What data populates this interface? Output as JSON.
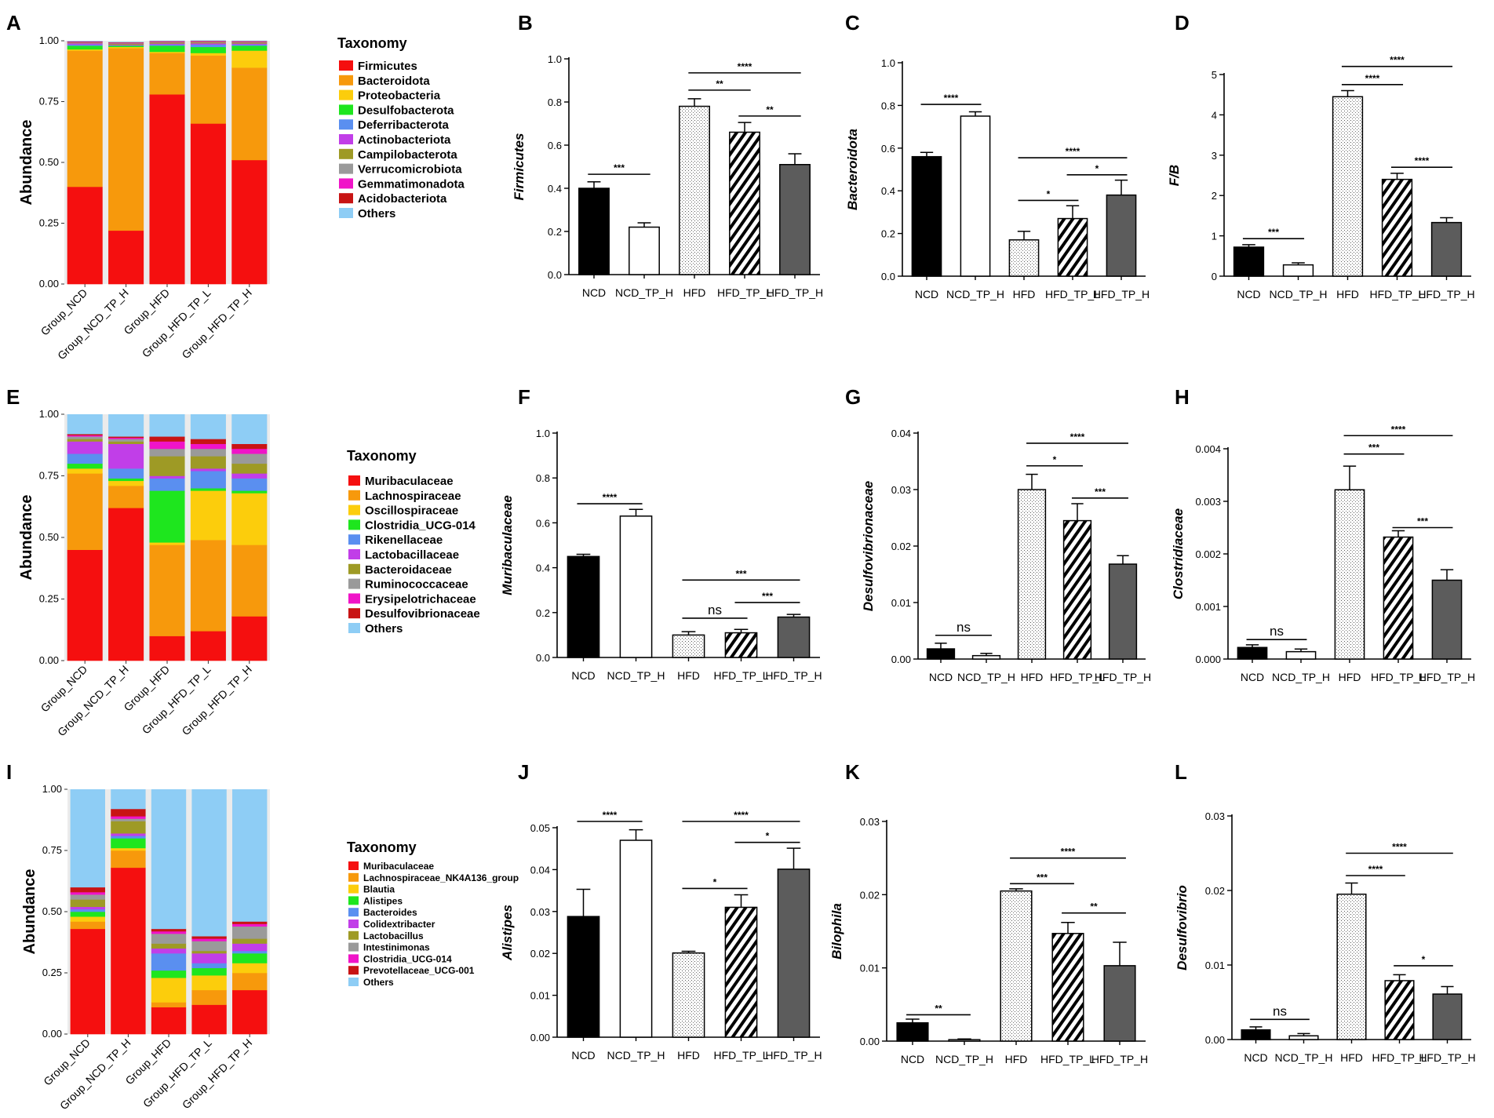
{
  "figure": {
    "bar_categories": [
      "NCD",
      "NCD_TP_H",
      "HFD",
      "HFD_TP_L",
      "HFD_TP_H"
    ],
    "stack_categories": [
      "Group_NCD",
      "Group_NCD_TP_H",
      "Group_HFD",
      "Group_HFD_TP_L",
      "Group_HFD_TP_H"
    ]
  },
  "chart_data": [
    {
      "id": "A",
      "panel_label": "A",
      "type": "stacked-bar",
      "ylabel": "Abundance",
      "ylim": [
        0,
        1
      ],
      "yticks": [
        "0.00",
        "0.25",
        "0.50",
        "0.75",
        "1.00"
      ],
      "categories": [
        "Group_NCD",
        "Group_NCD_TP_H",
        "Group_HFD",
        "Group_HFD_TP_L",
        "Group_HFD_TP_H"
      ],
      "legend_title": "Taxonomy",
      "series": [
        {
          "name": "Firmicutes",
          "color": "#f50f0f",
          "values": [
            0.4,
            0.22,
            0.78,
            0.66,
            0.51
          ]
        },
        {
          "name": "Bacteroidota",
          "color": "#f7990c",
          "values": [
            0.56,
            0.75,
            0.17,
            0.28,
            0.38
          ]
        },
        {
          "name": "Proteobacteria",
          "color": "#fccd0c",
          "values": [
            0.005,
            0.005,
            0.005,
            0.01,
            0.07
          ]
        },
        {
          "name": "Desulfobacterota",
          "color": "#1ee61e",
          "values": [
            0.015,
            0.005,
            0.025,
            0.025,
            0.02
          ]
        },
        {
          "name": "Deferribacterota",
          "color": "#5a8ff0",
          "values": [
            0.005,
            0.002,
            0.005,
            0.01,
            0.005
          ]
        },
        {
          "name": "Actinobacteriota",
          "color": "#c13ee8",
          "values": [
            0.005,
            0.002,
            0.004,
            0.005,
            0.004
          ]
        },
        {
          "name": "Campilobacterota",
          "color": "#9e9a25",
          "values": [
            0.002,
            0.004,
            0.004,
            0.004,
            0.004
          ]
        },
        {
          "name": "Verrucomicrobiota",
          "color": "#9a9a9a",
          "values": [
            0.002,
            0.002,
            0.002,
            0.002,
            0.002
          ]
        },
        {
          "name": "Gemmatimonadota",
          "color": "#f014c8",
          "values": [
            0.002,
            0.002,
            0.002,
            0.002,
            0.002
          ]
        },
        {
          "name": "Acidobacteriota",
          "color": "#c81414",
          "values": [
            0.002,
            0.002,
            0.002,
            0.002,
            0.002
          ]
        },
        {
          "name": "Others",
          "color": "#8ecdf5",
          "values": [
            0.002,
            0.002,
            0.002,
            0.002,
            0.002
          ]
        }
      ]
    },
    {
      "id": "E",
      "panel_label": "E",
      "type": "stacked-bar",
      "ylabel": "Abundance",
      "ylim": [
        0,
        1
      ],
      "yticks": [
        "0.00",
        "0.25",
        "0.50",
        "0.75",
        "1.00"
      ],
      "categories": [
        "Group_NCD",
        "Group_NCD_TP_H",
        "Group_HFD",
        "Group_HFD_TP_L",
        "Group_HFD_TP_H"
      ],
      "legend_title": "Taxonomy",
      "series": [
        {
          "name": "Muribaculaceae",
          "color": "#f50f0f",
          "values": [
            0.45,
            0.62,
            0.1,
            0.12,
            0.18
          ]
        },
        {
          "name": "Lachnospiraceae",
          "color": "#f7990c",
          "values": [
            0.31,
            0.09,
            0.37,
            0.37,
            0.29
          ]
        },
        {
          "name": "Oscillospiraceae",
          "color": "#fccd0c",
          "values": [
            0.02,
            0.02,
            0.01,
            0.2,
            0.21
          ]
        },
        {
          "name": "Clostridia_UCG-014",
          "color": "#1ee61e",
          "values": [
            0.02,
            0.01,
            0.21,
            0.01,
            0.01
          ]
        },
        {
          "name": "Rikenellaceae",
          "color": "#5a8ff0",
          "values": [
            0.04,
            0.04,
            0.05,
            0.07,
            0.05
          ]
        },
        {
          "name": "Lactobacillaceae",
          "color": "#c13ee8",
          "values": [
            0.05,
            0.1,
            0.01,
            0.01,
            0.02
          ]
        },
        {
          "name": "Bacteroidaceae",
          "color": "#9e9a25",
          "values": [
            0.01,
            0.01,
            0.08,
            0.05,
            0.04
          ]
        },
        {
          "name": "Ruminococcaceae",
          "color": "#9a9a9a",
          "values": [
            0.01,
            0.01,
            0.03,
            0.03,
            0.04
          ]
        },
        {
          "name": "Erysipelotrichaceae",
          "color": "#f014c8",
          "values": [
            0.005,
            0.005,
            0.03,
            0.02,
            0.02
          ]
        },
        {
          "name": "Desulfovibrionaceae",
          "color": "#c81414",
          "values": [
            0.005,
            0.005,
            0.02,
            0.02,
            0.02
          ]
        },
        {
          "name": "Others",
          "color": "#8ecdf5",
          "values": [
            0.08,
            0.09,
            0.09,
            0.1,
            0.12
          ]
        }
      ]
    },
    {
      "id": "I",
      "panel_label": "I",
      "type": "stacked-bar",
      "ylabel": "Abundance",
      "ylim": [
        0,
        1
      ],
      "yticks": [
        "0.00",
        "0.25",
        "0.50",
        "0.75",
        "1.00"
      ],
      "categories": [
        "Group_NCD",
        "Group_NCD_TP_H",
        "Group_HFD",
        "Group_HFD_TP_L",
        "Group_HFD_TP_H"
      ],
      "legend_title": "Taxonomy",
      "series": [
        {
          "name": "Muribaculaceae",
          "color": "#f50f0f",
          "values": [
            0.43,
            0.68,
            0.11,
            0.12,
            0.18
          ]
        },
        {
          "name": "Lachnospiraceae_NK4A136_group",
          "color": "#f7990c",
          "values": [
            0.03,
            0.07,
            0.02,
            0.06,
            0.07
          ]
        },
        {
          "name": "Blautia",
          "color": "#fccd0c",
          "values": [
            0.02,
            0.01,
            0.1,
            0.06,
            0.04
          ]
        },
        {
          "name": "Alistipes",
          "color": "#1ee61e",
          "values": [
            0.02,
            0.04,
            0.03,
            0.03,
            0.04
          ]
        },
        {
          "name": "Bacteroides",
          "color": "#5a8ff0",
          "values": [
            0.01,
            0.01,
            0.07,
            0.02,
            0.01
          ]
        },
        {
          "name": "Colidextribacter",
          "color": "#c13ee8",
          "values": [
            0.01,
            0.01,
            0.02,
            0.04,
            0.03
          ]
        },
        {
          "name": "Lactobacillus",
          "color": "#9e9a25",
          "values": [
            0.03,
            0.05,
            0.02,
            0.01,
            0.02
          ]
        },
        {
          "name": "Intestinimonas",
          "color": "#9a9a9a",
          "values": [
            0.02,
            0.01,
            0.04,
            0.04,
            0.05
          ]
        },
        {
          "name": "Clostridia_UCG-014",
          "color": "#f014c8",
          "values": [
            0.01,
            0.01,
            0.01,
            0.01,
            0.01
          ]
        },
        {
          "name": "Prevotellaceae_UCG-001",
          "color": "#c81414",
          "values": [
            0.02,
            0.03,
            0.01,
            0.01,
            0.01
          ]
        },
        {
          "name": "Others",
          "color": "#8ecdf5",
          "values": [
            0.4,
            0.08,
            0.57,
            0.6,
            0.54
          ]
        }
      ]
    },
    {
      "id": "B",
      "panel_label": "B",
      "type": "bar",
      "ylabel": "Firmicutes",
      "ylim": [
        0,
        1
      ],
      "yticks": [
        "0.0",
        "0.2",
        "0.4",
        "0.6",
        "0.8",
        "1.0"
      ],
      "categories": [
        "NCD",
        "NCD_TP_H",
        "HFD",
        "HFD_TP_L",
        "HFD_TP_H"
      ],
      "values": [
        0.4,
        0.22,
        0.78,
        0.66,
        0.51
      ],
      "errors": [
        0.03,
        0.02,
        0.035,
        0.045,
        0.05
      ],
      "significance": [
        {
          "from": 0,
          "to": 1,
          "label": "***",
          "y": 0.465
        },
        {
          "from": 2,
          "to": 4,
          "label": "****",
          "y": 0.935
        },
        {
          "from": 2,
          "to": 3,
          "label": "**",
          "y": 0.855
        },
        {
          "from": 3,
          "to": 4,
          "label": "**",
          "y": 0.735
        }
      ]
    },
    {
      "id": "C",
      "panel_label": "C",
      "type": "bar",
      "ylabel": "Bacteroidota",
      "ylim": [
        0,
        1
      ],
      "yticks": [
        "0.0",
        "0.2",
        "0.4",
        "0.6",
        "0.8",
        "1.0"
      ],
      "categories": [
        "NCD",
        "NCD_TP_H",
        "HFD",
        "HFD_TP_L",
        "HFD_TP_H"
      ],
      "values": [
        0.56,
        0.75,
        0.17,
        0.27,
        0.38
      ],
      "errors": [
        0.02,
        0.02,
        0.04,
        0.06,
        0.07
      ],
      "significance": [
        {
          "from": 0,
          "to": 1,
          "label": "****",
          "y": 0.805
        },
        {
          "from": 2,
          "to": 4,
          "label": "****",
          "y": 0.555
        },
        {
          "from": 3,
          "to": 4,
          "label": "*",
          "y": 0.475
        },
        {
          "from": 2,
          "to": 3,
          "label": "*",
          "y": 0.355
        }
      ]
    },
    {
      "id": "D",
      "panel_label": "D",
      "type": "bar",
      "ylabel": "F/B",
      "ylim": [
        0,
        5
      ],
      "yticks": [
        "0",
        "1",
        "2",
        "3",
        "4",
        "5"
      ],
      "categories": [
        "NCD",
        "NCD_TP_H",
        "HFD",
        "HFD_TP_L",
        "HFD_TP_H"
      ],
      "values": [
        0.72,
        0.28,
        4.45,
        2.4,
        1.33
      ],
      "errors": [
        0.06,
        0.05,
        0.15,
        0.15,
        0.12
      ],
      "significance": [
        {
          "from": 0,
          "to": 1,
          "label": "***",
          "y": 0.93
        },
        {
          "from": 2,
          "to": 4,
          "label": "****",
          "y": 5.2
        },
        {
          "from": 2,
          "to": 3,
          "label": "****",
          "y": 4.75
        },
        {
          "from": 3,
          "to": 4,
          "label": "****",
          "y": 2.7
        }
      ]
    },
    {
      "id": "F",
      "panel_label": "F",
      "type": "bar",
      "ylabel": "Muribaculaceae",
      "ylim": [
        0,
        1
      ],
      "yticks": [
        "0.0",
        "0.2",
        "0.4",
        "0.6",
        "0.8",
        "1.0"
      ],
      "categories": [
        "NCD",
        "NCD_TP_H",
        "HFD",
        "HFD_TP_L",
        "HFD_TP_H"
      ],
      "values": [
        0.45,
        0.63,
        0.1,
        0.11,
        0.18
      ],
      "errors": [
        0.01,
        0.03,
        0.015,
        0.015,
        0.012
      ],
      "significance": [
        {
          "from": 0,
          "to": 1,
          "label": "****",
          "y": 0.685
        },
        {
          "from": 2,
          "to": 4,
          "label": "***",
          "y": 0.345
        },
        {
          "from": 2,
          "to": 3,
          "label": "ns",
          "y": 0.175
        },
        {
          "from": 3,
          "to": 4,
          "label": "***",
          "y": 0.245
        }
      ]
    },
    {
      "id": "G",
      "panel_label": "G",
      "type": "bar",
      "ylabel": "Desulfovibrionaceae",
      "ylim": [
        0,
        0.04
      ],
      "yticks": [
        "0.00",
        "0.01",
        "0.02",
        "0.03",
        "0.04"
      ],
      "categories": [
        "NCD",
        "NCD_TP_H",
        "HFD",
        "HFD_TP_L",
        "HFD_TP_H"
      ],
      "values": [
        0.0018,
        0.0006,
        0.03,
        0.0245,
        0.0168
      ],
      "errors": [
        0.001,
        0.0004,
        0.0027,
        0.003,
        0.0015
      ],
      "significance": [
        {
          "from": 0,
          "to": 1,
          "label": "ns",
          "y": 0.0042
        },
        {
          "from": 2,
          "to": 4,
          "label": "****",
          "y": 0.0382
        },
        {
          "from": 2,
          "to": 3,
          "label": "*",
          "y": 0.0342
        },
        {
          "from": 3,
          "to": 4,
          "label": "***",
          "y": 0.0285
        }
      ]
    },
    {
      "id": "H",
      "panel_label": "H",
      "type": "bar",
      "ylabel": "Clostridiaceae",
      "ylim": [
        0,
        0.004
      ],
      "yticks": [
        "0.000",
        "0.001",
        "0.002",
        "0.003",
        "0.004"
      ],
      "categories": [
        "NCD",
        "NCD_TP_H",
        "HFD",
        "HFD_TP_L",
        "HFD_TP_H"
      ],
      "values": [
        0.00022,
        0.00014,
        0.00322,
        0.00232,
        0.0015
      ],
      "errors": [
        5e-05,
        5e-05,
        0.00045,
        0.00012,
        0.0002
      ],
      "significance": [
        {
          "from": 0,
          "to": 1,
          "label": "ns",
          "y": 0.00037
        },
        {
          "from": 2,
          "to": 4,
          "label": "****",
          "y": 0.00425
        },
        {
          "from": 2,
          "to": 3,
          "label": "***",
          "y": 0.0039
        },
        {
          "from": 3,
          "to": 4,
          "label": "***",
          "y": 0.0025
        }
      ]
    },
    {
      "id": "J",
      "panel_label": "J",
      "type": "bar",
      "ylabel": "Alistipes",
      "ylim": [
        0,
        0.05
      ],
      "yticks": [
        "0.00",
        "0.01",
        "0.02",
        "0.03",
        "0.04",
        "0.05"
      ],
      "categories": [
        "NCD",
        "NCD_TP_H",
        "HFD",
        "HFD_TP_L",
        "HFD_TP_H"
      ],
      "values": [
        0.0288,
        0.047,
        0.0201,
        0.031,
        0.0401
      ],
      "errors": [
        0.0065,
        0.0025,
        0.0004,
        0.003,
        0.005
      ],
      "significance": [
        {
          "from": 0,
          "to": 1,
          "label": "****",
          "y": 0.0515
        },
        {
          "from": 2,
          "to": 4,
          "label": "****",
          "y": 0.0515
        },
        {
          "from": 3,
          "to": 4,
          "label": "*",
          "y": 0.0465
        },
        {
          "from": 2,
          "to": 3,
          "label": "*",
          "y": 0.0355
        }
      ]
    },
    {
      "id": "K",
      "panel_label": "K",
      "type": "bar",
      "ylabel": "Bilophila",
      "ylim": [
        0,
        0.03
      ],
      "yticks": [
        "0.00",
        "0.01",
        "0.02",
        "0.03"
      ],
      "categories": [
        "NCD",
        "NCD_TP_H",
        "HFD",
        "HFD_TP_L",
        "HFD_TP_H"
      ],
      "values": [
        0.0025,
        0.0002,
        0.0205,
        0.0147,
        0.0103
      ],
      "errors": [
        0.0005,
        0.0001,
        0.0003,
        0.0015,
        0.0032
      ],
      "significance": [
        {
          "from": 0,
          "to": 1,
          "label": "**",
          "y": 0.0036
        },
        {
          "from": 2,
          "to": 4,
          "label": "****",
          "y": 0.025
        },
        {
          "from": 2,
          "to": 3,
          "label": "***",
          "y": 0.0215
        },
        {
          "from": 3,
          "to": 4,
          "label": "**",
          "y": 0.0175
        }
      ]
    },
    {
      "id": "L",
      "panel_label": "L",
      "type": "bar",
      "ylabel": "Desulfovibrio",
      "ylim": [
        0,
        0.03
      ],
      "yticks": [
        "0.00",
        "0.01",
        "0.02",
        "0.03"
      ],
      "categories": [
        "NCD",
        "NCD_TP_H",
        "HFD",
        "HFD_TP_L",
        "HFD_TP_H"
      ],
      "values": [
        0.0013,
        0.0005,
        0.0195,
        0.0079,
        0.0061
      ],
      "errors": [
        0.0004,
        0.0003,
        0.0015,
        0.0008,
        0.001
      ],
      "significance": [
        {
          "from": 0,
          "to": 1,
          "label": "ns",
          "y": 0.0027
        },
        {
          "from": 2,
          "to": 4,
          "label": "****",
          "y": 0.025
        },
        {
          "from": 2,
          "to": 3,
          "label": "****",
          "y": 0.022
        },
        {
          "from": 3,
          "to": 4,
          "label": "*",
          "y": 0.0099
        }
      ]
    }
  ]
}
